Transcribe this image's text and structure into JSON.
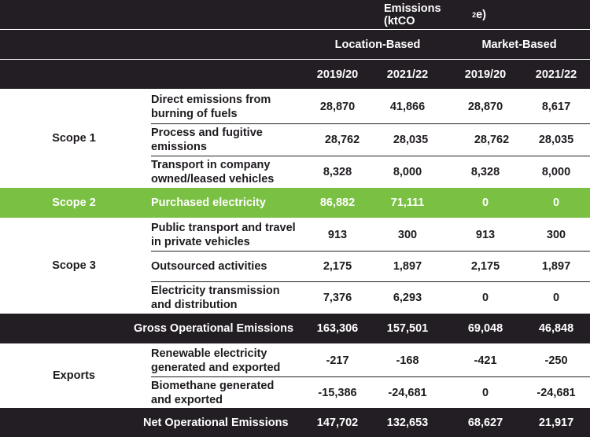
{
  "header": {
    "title_main": "Emissions (ktCO",
    "title_sub": "2",
    "title_end": "e)",
    "groups": [
      "Location-Based",
      "Market-Based"
    ],
    "years": [
      "2019/20",
      "2021/22",
      "2019/20",
      "2021/22"
    ]
  },
  "scopes": {
    "scope1": "Scope 1",
    "scope2": "Scope 2",
    "scope3": "Scope 3",
    "exports": "Exports"
  },
  "rows": [
    {
      "desc": "Direct emissions from burning of fuels",
      "values": [
        "28,870",
        "41,866",
        "28,870",
        "8,617"
      ]
    },
    {
      "desc": "Process and fugitive emissions",
      "values": [
        "28,762",
        "28,035",
        "28,762",
        "28,035"
      ]
    },
    {
      "desc": "Transport in company owned/leased vehicles",
      "values": [
        "8,328",
        "8,000",
        "8,328",
        "8,000"
      ]
    },
    {
      "desc": "Purchased electricity",
      "values": [
        "86,882",
        "71,111",
        "0",
        "0"
      ]
    },
    {
      "desc": "Public transport and travel in private vehicles",
      "values": [
        "913",
        "300",
        "913",
        "300"
      ]
    },
    {
      "desc": "Outsourced activities",
      "values": [
        "2,175",
        "1,897",
        "2,175",
        "1,897"
      ]
    },
    {
      "desc": "Electricity transmission and distribution",
      "values": [
        "7,376",
        "6,293",
        "0",
        "0"
      ]
    },
    {
      "desc": "Gross Operational Emissions",
      "values": [
        "163,306",
        "157,501",
        "69,048",
        "46,848"
      ]
    },
    {
      "desc": "Renewable electricity generated and exported",
      "values": [
        "-217",
        "-168",
        "-421",
        "-250"
      ]
    },
    {
      "desc": "Biomethane generated and exported",
      "values": [
        "-15,386",
        "-24,681",
        "0",
        "-24,681"
      ]
    },
    {
      "desc": "Net Operational  Emissions",
      "values": [
        "147,702",
        "132,653",
        "68,627",
        "21,917"
      ]
    }
  ],
  "colors": {
    "dark": "#231e23",
    "green": "#7ac143",
    "text": "#1e1a1f"
  }
}
